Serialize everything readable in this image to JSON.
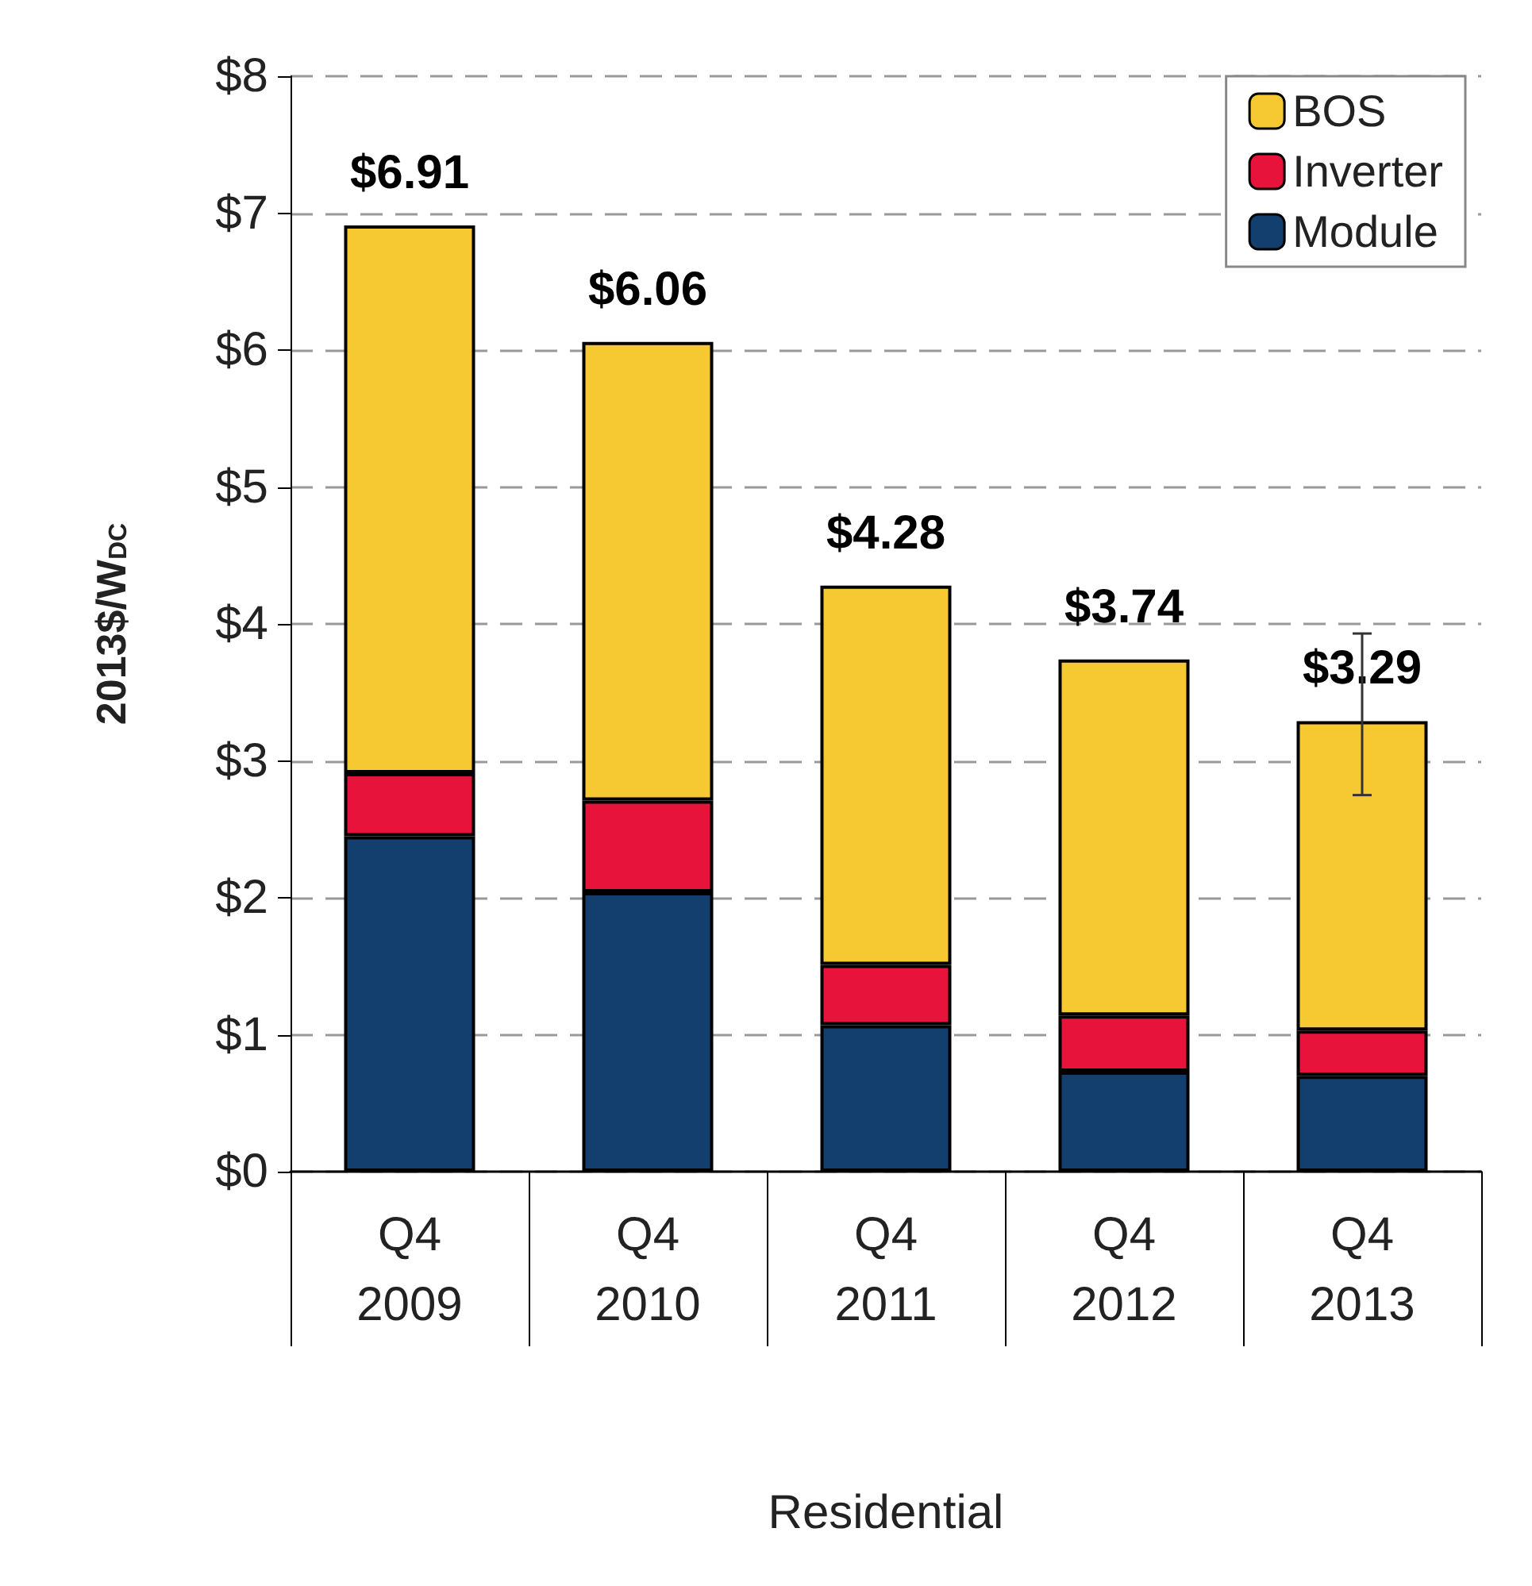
{
  "chart_data": {
    "type": "bar",
    "stacked": true,
    "xlabel": "Residential",
    "ylabel": "2013$/W$_{DC}$",
    "categories": [
      "Q4\n2009",
      "Q4\n2010",
      "Q4\n2011",
      "Q4\n2012",
      "Q4\n2013"
    ],
    "series": [
      {
        "name": "Module",
        "color": "#123f6d",
        "values": [
          2.45,
          2.04,
          1.07,
          0.73,
          0.7
        ]
      },
      {
        "name": "Inverter",
        "color": "#e8133b",
        "values": [
          0.46,
          0.67,
          0.44,
          0.41,
          0.33
        ]
      },
      {
        "name": "BOS",
        "color": "#f6c932",
        "values": [
          4.0,
          3.35,
          2.77,
          2.6,
          2.26
        ],
        "errors": [
          null,
          null,
          null,
          null,
          [
            2.75,
            3.93
          ]
        ]
      }
    ],
    "totals": [
      "$6.91",
      "$6.06",
      "$4.28",
      "$3.74",
      "$3.29"
    ],
    "ylim": [
      0,
      8
    ],
    "yticks": [
      {
        "value": 0,
        "label": "$0"
      },
      {
        "value": 1,
        "label": "$1"
      },
      {
        "value": 2,
        "label": "$2"
      },
      {
        "value": 3,
        "label": "$3"
      },
      {
        "value": 4,
        "label": "$4"
      },
      {
        "value": 5,
        "label": "$5"
      },
      {
        "value": 6,
        "label": "$6"
      },
      {
        "value": 7,
        "label": "$7"
      },
      {
        "value": 8,
        "label": "$8"
      }
    ],
    "grid": "y",
    "legend": "top right"
  }
}
